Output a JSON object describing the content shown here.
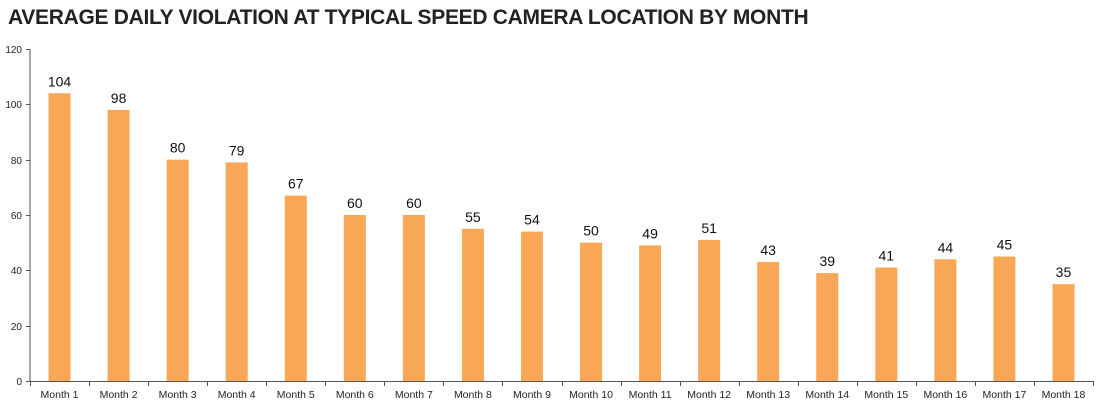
{
  "chart_data": {
    "type": "bar",
    "title": "AVERAGE DAILY VIOLATION AT TYPICAL SPEED CAMERA LOCATION BY MONTH",
    "xlabel": "",
    "ylabel": "",
    "categories": [
      "Month 1",
      "Month 2",
      "Month 3",
      "Month 4",
      "Month 5",
      "Month 6",
      "Month 7",
      "Month 8",
      "Month 9",
      "Month 10",
      "Month 11",
      "Month 12",
      "Month 13",
      "Month 14",
      "Month 15",
      "Month 16",
      "Month 17",
      "Month 18"
    ],
    "values": [
      104,
      98,
      80,
      79,
      67,
      60,
      60,
      55,
      54,
      50,
      49,
      51,
      43,
      39,
      41,
      44,
      45,
      35
    ],
    "data_labels": [
      "104",
      "98",
      "80",
      "79",
      "67",
      "60",
      "60",
      "55",
      "54",
      "50",
      "49",
      "51",
      "43",
      "39",
      "41",
      "44",
      "45",
      "35"
    ],
    "ylim": [
      0,
      120
    ],
    "yticks": [
      0,
      20,
      40,
      60,
      80,
      100,
      120
    ],
    "ytick_labels": [
      "0",
      "20",
      "40",
      "60",
      "80",
      "100",
      "120"
    ],
    "grid": false,
    "legend": "none",
    "bar_color": "#F7A755",
    "axis_color": "#555555"
  }
}
